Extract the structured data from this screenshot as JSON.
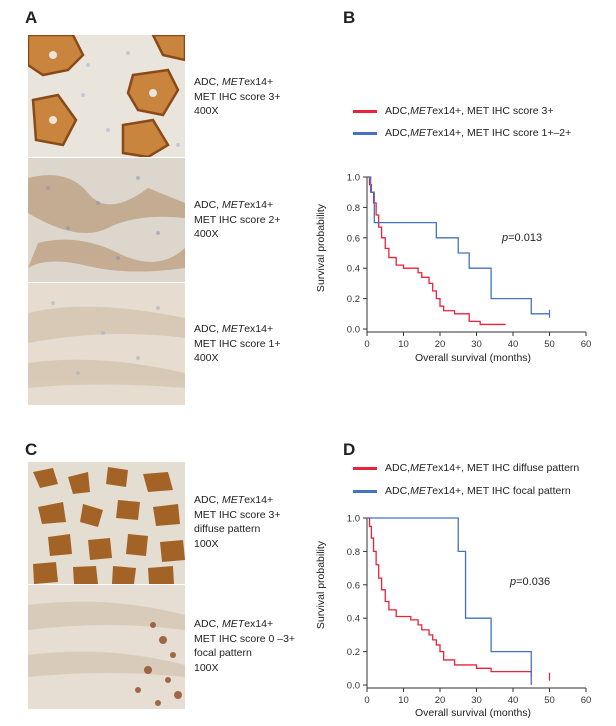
{
  "panels": {
    "A": {
      "letter": "A",
      "images": [
        {
          "caption_pre": "ADC, ",
          "caption_it": "MET",
          "caption_post": "ex14+",
          "line2": "MET IHC score 3+",
          "line3": "400X",
          "stain": "strong-membrane"
        },
        {
          "caption_pre": "ADC, ",
          "caption_it": "MET",
          "caption_post": "ex14+",
          "line2": "MET IHC score 2+",
          "line3": "400X",
          "stain": "moderate"
        },
        {
          "caption_pre": "ADC, ",
          "caption_it": "MET",
          "caption_post": "ex14+",
          "line2": "MET IHC score 1+",
          "line3": "400X",
          "stain": "weak"
        }
      ]
    },
    "C": {
      "letter": "C",
      "images": [
        {
          "caption_pre": "ADC, ",
          "caption_it": "MET",
          "caption_post": "ex14+",
          "line2": "MET IHC score 3+",
          "line3": "diffuse pattern",
          "line4": "100X",
          "stain": "diffuse"
        },
        {
          "caption_pre": "ADC, ",
          "caption_it": "MET",
          "caption_post": "ex14+",
          "line2": "MET IHC score 0 –3+",
          "line3": "focal pattern",
          "line4": "100X",
          "stain": "focal"
        }
      ]
    },
    "B": {
      "letter": "B",
      "legend": [
        {
          "pre": "ADC, ",
          "it": "MET",
          "post": "ex14+, MET IHC score 3+",
          "color": "#e8233a"
        },
        {
          "pre": "ADC, ",
          "it": "MET",
          "post": "ex14+, MET IHC score 1+–2+",
          "color": "#4472c4"
        }
      ],
      "pvalue_label": "p",
      "pvalue_text": "=0.013"
    },
    "D": {
      "letter": "D",
      "legend": [
        {
          "pre": "ADC, ",
          "it": "MET",
          "post": "ex14+, MET IHC diffuse pattern",
          "color": "#e8233a"
        },
        {
          "pre": "ADC, ",
          "it": "MET",
          "post": "ex14+, MET IHC focal pattern",
          "color": "#4472c4"
        }
      ],
      "pvalue_label": "p",
      "pvalue_text": "=0.036"
    }
  },
  "chart_data": [
    {
      "type": "line",
      "step": true,
      "xlabel": "Overall survival (months)",
      "ylabel": "Survival probability",
      "xlim": [
        0,
        60
      ],
      "ylim": [
        0,
        1.0
      ],
      "xticks": [
        0,
        10,
        20,
        30,
        40,
        50,
        60
      ],
      "yticks": [
        0.0,
        0.2,
        0.4,
        0.6,
        0.8,
        1.0
      ],
      "ytick_labels": [
        "0.0",
        "0.2",
        "0.4",
        "0.6",
        "0.8",
        "1.0"
      ],
      "series": [
        {
          "name": "ADC, METex14+, MET IHC score 3+",
          "color": "#e8233a",
          "x": [
            0,
            0.7,
            1.2,
            1.8,
            2.5,
            3.2,
            4,
            5,
            6,
            8,
            10,
            14,
            15,
            17,
            18,
            19,
            20,
            21,
            24,
            28,
            31,
            38
          ],
          "y": [
            1.0,
            0.95,
            0.9,
            0.83,
            0.75,
            0.67,
            0.6,
            0.53,
            0.47,
            0.42,
            0.4,
            0.37,
            0.34,
            0.3,
            0.25,
            0.2,
            0.15,
            0.12,
            0.1,
            0.05,
            0.03,
            0.03
          ],
          "censor": []
        },
        {
          "name": "ADC, METex14+, MET IHC score 1+–2+",
          "color": "#4472c4",
          "x": [
            0,
            1,
            2,
            19,
            25,
            28,
            34,
            45,
            50
          ],
          "y": [
            1.0,
            0.9,
            0.7,
            0.6,
            0.5,
            0.4,
            0.2,
            0.1,
            0.1
          ],
          "censor": [
            50
          ]
        }
      ]
    },
    {
      "type": "line",
      "step": true,
      "xlabel": "Overall survival (months)",
      "ylabel": "Survival probability",
      "xlim": [
        0,
        60
      ],
      "ylim": [
        0,
        1.0
      ],
      "xticks": [
        0,
        10,
        20,
        30,
        40,
        50,
        60
      ],
      "yticks": [
        0.0,
        0.2,
        0.4,
        0.6,
        0.8,
        1.0
      ],
      "ytick_labels": [
        "0.0",
        "0.2",
        "0.4",
        "0.6",
        "0.8",
        "1.0"
      ],
      "series": [
        {
          "name": "ADC, METex14+, MET IHC diffuse pattern",
          "color": "#e8233a",
          "x": [
            0,
            0.7,
            1.2,
            1.8,
            2.5,
            3.2,
            4,
            5,
            6,
            8,
            12,
            14,
            15,
            17,
            18,
            19,
            20,
            21,
            24,
            30,
            34,
            45
          ],
          "y": [
            1.0,
            0.95,
            0.88,
            0.8,
            0.72,
            0.64,
            0.57,
            0.5,
            0.45,
            0.41,
            0.39,
            0.36,
            0.33,
            0.3,
            0.27,
            0.24,
            0.2,
            0.15,
            0.12,
            0.1,
            0.08,
            0.05
          ],
          "censor": [
            50
          ]
        },
        {
          "name": "ADC, METex14+, MET IHC focal pattern",
          "color": "#4472c4",
          "x": [
            0,
            25,
            27,
            34,
            45
          ],
          "y": [
            1.0,
            0.8,
            0.4,
            0.2,
            0.0
          ],
          "censor": []
        }
      ]
    }
  ]
}
